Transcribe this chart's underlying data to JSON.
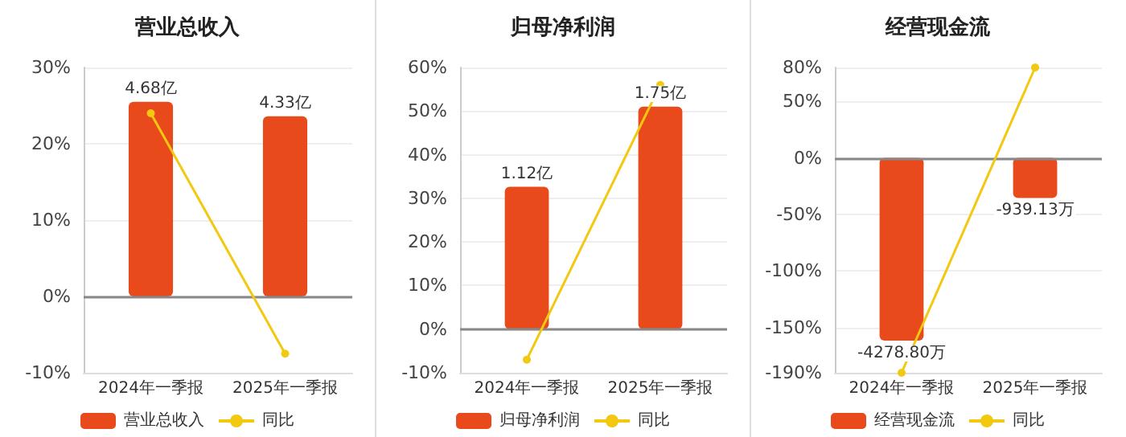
{
  "chart_data": [
    {
      "type": "bar",
      "title": "营业总收入",
      "categories": [
        "2024年一季报",
        "2025年一季报"
      ],
      "series": [
        {
          "name": "营业总收入",
          "axis": "y2",
          "color": "#e84a1c",
          "values": [
            4.68,
            4.33
          ],
          "value_labels": [
            "4.68亿",
            "4.33亿"
          ]
        },
        {
          "name": "同比",
          "type": "line",
          "color": "#f2c811",
          "values": [
            24,
            -7.5
          ]
        }
      ],
      "ylim": [
        -10,
        30
      ],
      "yticks": [
        {
          "value": -10,
          "label": "-10%"
        },
        {
          "value": 0,
          "label": "0%"
        },
        {
          "value": 10,
          "label": "10%"
        },
        {
          "value": 20,
          "label": "20%"
        },
        {
          "value": 30,
          "label": "30%"
        }
      ],
      "grid": "y",
      "legend": "bottom",
      "marker": "circle"
    },
    {
      "type": "bar",
      "title": "归母净利润",
      "categories": [
        "2024年一季报",
        "2025年一季报"
      ],
      "series": [
        {
          "name": "归母净利润",
          "axis": "y2",
          "color": "#e84a1c",
          "values": [
            1.12,
            1.75
          ],
          "value_labels": [
            "1.12亿",
            "1.75亿"
          ]
        },
        {
          "name": "同比",
          "type": "line",
          "color": "#f2c811",
          "values": [
            -7,
            56
          ]
        }
      ],
      "ylim": [
        -10,
        60
      ],
      "yticks": [
        {
          "value": -10,
          "label": "-10%"
        },
        {
          "value": 0,
          "label": "0%"
        },
        {
          "value": 10,
          "label": "10%"
        },
        {
          "value": 20,
          "label": "20%"
        },
        {
          "value": 30,
          "label": "30%"
        },
        {
          "value": 40,
          "label": "40%"
        },
        {
          "value": 50,
          "label": "50%"
        },
        {
          "value": 60,
          "label": "60%"
        }
      ],
      "grid": "y",
      "legend": "bottom",
      "marker": "circle"
    },
    {
      "type": "bar",
      "title": "经营现金流",
      "categories": [
        "2024年一季报",
        "2025年一季报"
      ],
      "series": [
        {
          "name": "经营现金流",
          "axis": "y2",
          "color": "#e84a1c",
          "values": [
            -4278.8,
            -939.13
          ],
          "value_labels": [
            "-4278.80万",
            "-939.13万"
          ]
        },
        {
          "name": "同比",
          "type": "line",
          "color": "#f2c811",
          "values": [
            -190,
            80
          ]
        }
      ],
      "ylim": [
        -190,
        80
      ],
      "yticks": [
        {
          "value": -190,
          "label": "-190%"
        },
        {
          "value": -150,
          "label": "-150%"
        },
        {
          "value": -100,
          "label": "-100%"
        },
        {
          "value": -50,
          "label": "-50%"
        },
        {
          "value": 0,
          "label": "0%"
        },
        {
          "value": 50,
          "label": "50%"
        },
        {
          "value": 80,
          "label": "80%"
        }
      ],
      "grid": "y",
      "legend": "bottom",
      "marker": "circle"
    }
  ]
}
